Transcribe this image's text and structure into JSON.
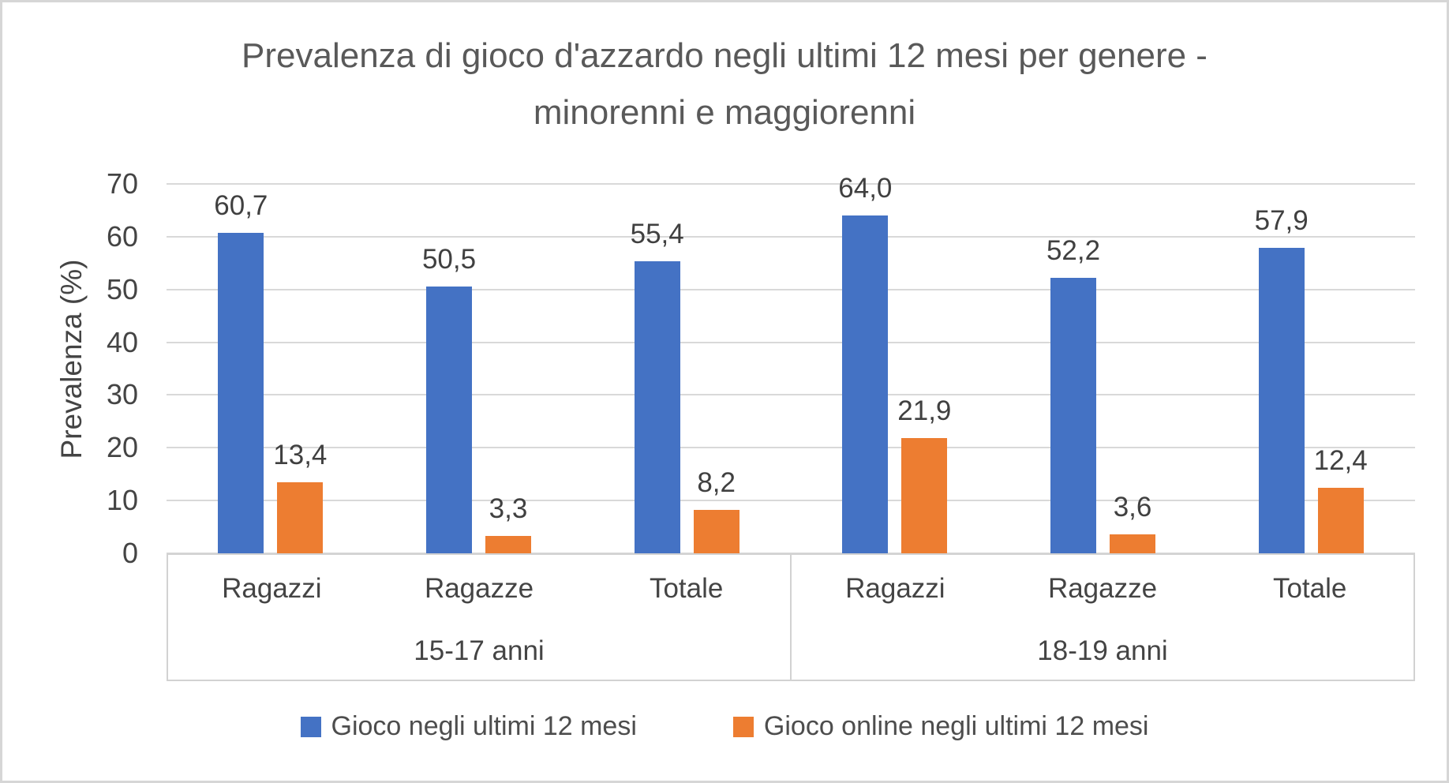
{
  "figure": {
    "background": "#FFFFFF",
    "border_color": "#D6D6D6"
  },
  "chart_data": {
    "type": "bar",
    "title": "Prevalenza di gioco d'azzardo negli ultimi 12 mesi per genere - minorenni e maggiorenni",
    "title_lines": [
      "Prevalenza di gioco d'azzardo negli ultimi 12 mesi per genere -",
      "minorenni e maggiorenni"
    ],
    "xlabel": "",
    "ylabel": "Prevalenza (%)",
    "ylim": [
      0,
      70
    ],
    "ytick_values": [
      0,
      10,
      20,
      30,
      40,
      50,
      60,
      70
    ],
    "yticks": [
      "0",
      "10",
      "20",
      "30",
      "40",
      "50",
      "60",
      "70"
    ],
    "grid": true,
    "legend_position": "bottom",
    "group_labels": [
      "15-17 anni",
      "18-19 anni"
    ],
    "categories": [
      "Ragazzi",
      "Ragazze",
      "Totale",
      "Ragazzi",
      "Ragazze",
      "Totale"
    ],
    "series": [
      {
        "name": "Gioco negli ultimi 12 mesi",
        "color": "#4472C4",
        "values": [
          60.7,
          50.5,
          55.4,
          64.0,
          52.2,
          57.9
        ],
        "labels": [
          "60,7",
          "50,5",
          "55,4",
          "64,0",
          "52,2",
          "57,9"
        ]
      },
      {
        "name": "Gioco online negli ultimi 12 mesi",
        "color": "#ED7D31",
        "values": [
          13.4,
          3.3,
          8.2,
          21.9,
          3.6,
          12.4
        ],
        "labels": [
          "13,4",
          "3,3",
          "8,2",
          "21,9",
          "3,6",
          "12,4"
        ]
      }
    ],
    "colors": {
      "gridline": "#D9D9D9",
      "axis_table_border": "#D2D2D2",
      "title_text": "#595959",
      "axis_text": "#444444",
      "data_label_text": "#404040"
    }
  }
}
